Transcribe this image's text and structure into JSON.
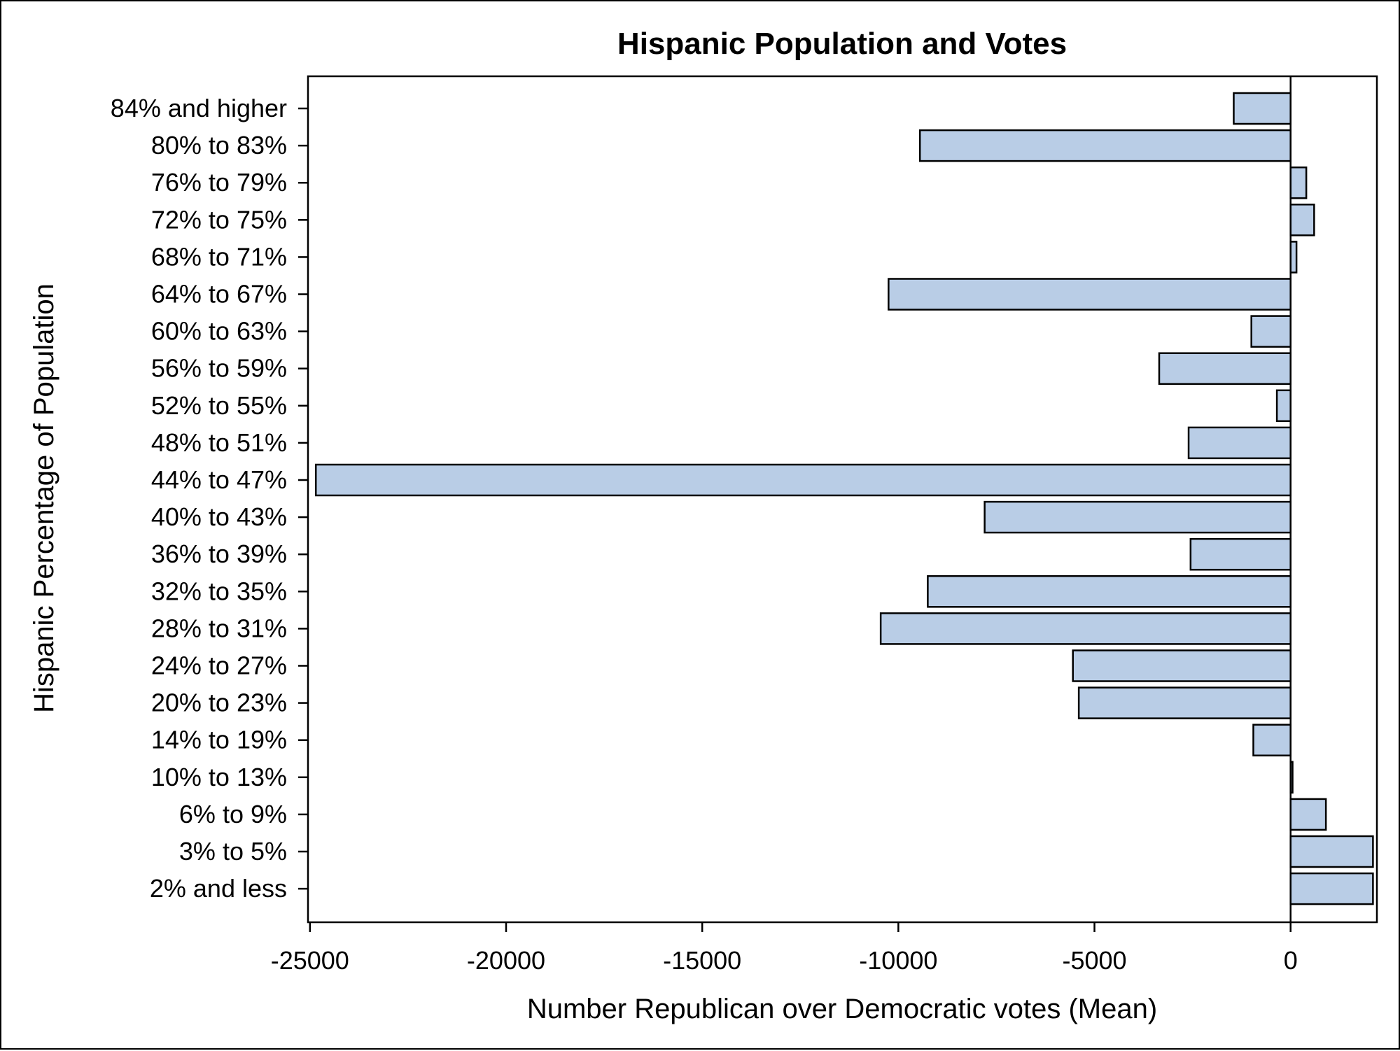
{
  "chart_data": {
    "type": "bar",
    "orientation": "horizontal",
    "title": "Hispanic Population and Votes",
    "xlabel": "Number Republican over Democratic votes (Mean)",
    "ylabel": "Hispanic Percentage of Population",
    "categories": [
      "84% and higher",
      "80% to 83%",
      "76% to 79%",
      "72% to 75%",
      "68% to 71%",
      "64% to 67%",
      "60% to 63%",
      "56% to 59%",
      "52% to 55%",
      "48% to 51%",
      "44% to 47%",
      "40% to 43%",
      "36% to 39%",
      "32% to 35%",
      "28% to 31%",
      "24% to 27%",
      "20% to 23%",
      "14% to 19%",
      "10% to 13%",
      "6% to 9%",
      "3% to 5%",
      "2% and less"
    ],
    "values": [
      -1450,
      -9450,
      400,
      600,
      150,
      -10250,
      -1000,
      -3350,
      -350,
      -2600,
      -24850,
      -7800,
      -2550,
      -9250,
      -10450,
      -5550,
      -5400,
      -950,
      50,
      900,
      2100,
      2100
    ],
    "xlim": [
      -25050,
      2200
    ],
    "xticks": [
      -25000,
      -20000,
      -15000,
      -10000,
      -5000,
      0
    ],
    "xtick_labels": [
      "-25000",
      "-20000",
      "-15000",
      "-10000",
      "-5000",
      "0"
    ],
    "grid": false,
    "legend": "none",
    "reference_line": 0,
    "colors": {
      "bar_fill": "#b9cde6",
      "bar_stroke": "#000000",
      "axis": "#000000",
      "background": "#ffffff"
    }
  }
}
